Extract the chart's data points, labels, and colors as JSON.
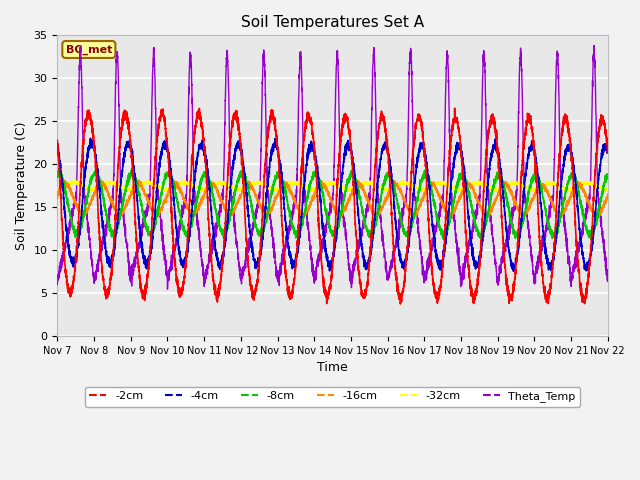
{
  "title": "Soil Temperatures Set A",
  "xlabel": "Time",
  "ylabel": "Soil Temperature (C)",
  "annotation": "BC_met",
  "ylim": [
    0,
    35
  ],
  "series_colors": {
    "-2cm": "#FF0000",
    "-4cm": "#0000CC",
    "-8cm": "#00CC00",
    "-16cm": "#FF8800",
    "-32cm": "#FFFF00",
    "Theta_Temp": "#9900CC"
  },
  "legend_order": [
    "-2cm",
    "-4cm",
    "-8cm",
    "-16cm",
    "-32cm",
    "Theta_Temp"
  ],
  "x_tick_labels": [
    "Nov 7",
    "Nov 8",
    "Nov 9",
    "Nov 10",
    "Nov 11",
    "Nov 12",
    "Nov 13",
    "Nov 14",
    "Nov 15",
    "Nov 16",
    "Nov 17",
    "Nov 18",
    "Nov 19",
    "Nov 20",
    "Nov 21",
    "Nov 22"
  ],
  "plot_bg_color": "#E8E8E8",
  "fig_bg_color": "#F2F2F2",
  "grid_color": "white",
  "title_fontsize": 11,
  "axis_label_fontsize": 9
}
